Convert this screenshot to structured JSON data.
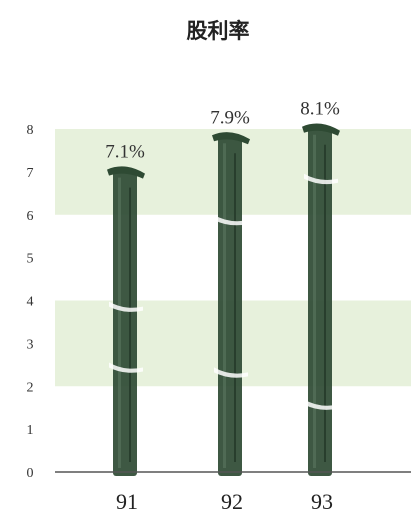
{
  "chart_data": {
    "type": "bar",
    "title": "股利率",
    "categories": [
      "91",
      "92",
      "93"
    ],
    "values": [
      7.1,
      7.9,
      8.1
    ],
    "data_labels": [
      "7.1%",
      "7.9%",
      "8.1%"
    ],
    "y_ticks": [
      "0",
      "1",
      "2",
      "3",
      "4",
      "5",
      "6",
      "7",
      "8"
    ],
    "ylim": [
      0,
      8
    ],
    "xlabel": "",
    "ylabel": "",
    "grid": "alternating horizontal bands",
    "colors": {
      "bar": "#2e4a33",
      "band": "#e7f1dc",
      "axis": "#555555"
    }
  }
}
